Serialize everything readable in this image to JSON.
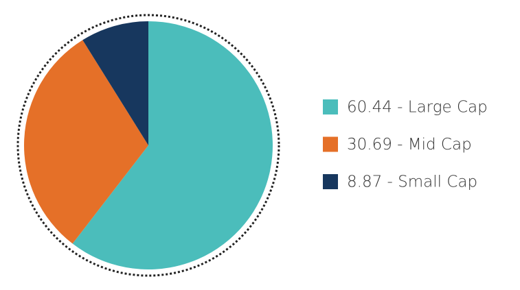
{
  "chart_data": {
    "type": "pie",
    "categories": [
      "60.44 - Large Cap",
      "30.69 - Mid Cap",
      "8.87 - Small Cap"
    ],
    "values": [
      60.44,
      30.69,
      8.87
    ],
    "colors": [
      "#4bbdbb",
      "#e57028",
      "#17375e"
    ],
    "legend": "right"
  }
}
